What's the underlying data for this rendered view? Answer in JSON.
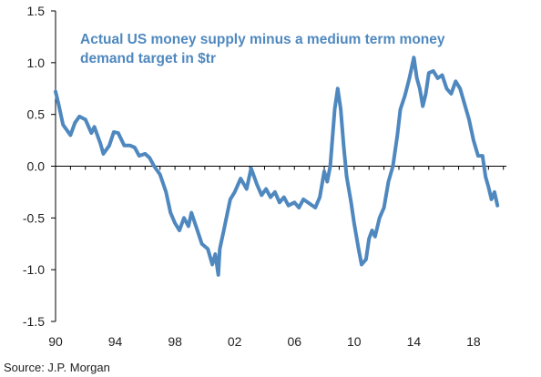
{
  "chart_data": {
    "type": "line",
    "title": "Actual US money supply minus a medium term money demand target in $tr",
    "xlabel": "",
    "ylabel": "",
    "source": "Source: J.P. Morgan",
    "xlim": [
      1990,
      2020.2
    ],
    "ylim": [
      -1.5,
      1.5
    ],
    "x_ticks": [
      {
        "value": 1990,
        "label": "90"
      },
      {
        "value": 1994,
        "label": "94"
      },
      {
        "value": 1998,
        "label": "98"
      },
      {
        "value": 2002,
        "label": "02"
      },
      {
        "value": 2006,
        "label": "06"
      },
      {
        "value": 2010,
        "label": "10"
      },
      {
        "value": 2014,
        "label": "14"
      },
      {
        "value": 2018,
        "label": "18"
      }
    ],
    "y_ticks": [
      {
        "value": 1.5,
        "label": "1.5"
      },
      {
        "value": 1.0,
        "label": "1.0"
      },
      {
        "value": 0.5,
        "label": "0.5"
      },
      {
        "value": 0.0,
        "label": "0.0"
      },
      {
        "value": -0.5,
        "label": "-0.5"
      },
      {
        "value": -1.0,
        "label": "-1.0"
      },
      {
        "value": -1.5,
        "label": "-1.5"
      }
    ],
    "grid": false,
    "legend": "none",
    "colors": {
      "line": "#4f88bf",
      "title": "#4f88bf",
      "axis": "#000000"
    },
    "series": [
      {
        "x": [
          1990.0,
          1990.2,
          1990.5,
          1991.0,
          1991.3,
          1991.6,
          1992.0,
          1992.4,
          1992.6,
          1993.0,
          1993.2,
          1993.6,
          1993.9,
          1994.2,
          1994.6,
          1995.0,
          1995.3,
          1995.6,
          1996.0,
          1996.3,
          1996.6,
          1997.0,
          1997.4,
          1997.7,
          1998.0,
          1998.3,
          1998.6,
          1998.9,
          1999.1,
          1999.5,
          1999.8,
          2000.2,
          2000.5,
          2000.7,
          2000.9,
          2001.0,
          2001.3,
          2001.7,
          2002.0,
          2002.4,
          2002.8,
          2003.1,
          2003.5,
          2003.8,
          2004.1,
          2004.4,
          2004.7,
          2005.0,
          2005.3,
          2005.6,
          2006.0,
          2006.3,
          2006.6,
          2007.0,
          2007.4,
          2007.7,
          2008.0,
          2008.2,
          2008.4,
          2008.7,
          2008.9,
          2009.1,
          2009.3,
          2009.5,
          2009.8,
          2010.0,
          2010.3,
          2010.5,
          2010.8,
          2011.0,
          2011.2,
          2011.4,
          2011.7,
          2012.0,
          2012.3,
          2012.6,
          2012.9,
          2013.1,
          2013.4,
          2013.7,
          2014.0,
          2014.2,
          2014.4,
          2014.6,
          2014.8,
          2015.0,
          2015.3,
          2015.6,
          2015.9,
          2016.2,
          2016.5,
          2016.8,
          2017.1,
          2017.4,
          2017.7,
          2018.0,
          2018.3,
          2018.6,
          2018.8,
          2019.0,
          2019.2,
          2019.4,
          2019.6
        ],
        "values": [
          0.72,
          0.6,
          0.4,
          0.3,
          0.42,
          0.48,
          0.45,
          0.32,
          0.38,
          0.22,
          0.12,
          0.2,
          0.33,
          0.32,
          0.2,
          0.2,
          0.18,
          0.1,
          0.12,
          0.08,
          0.0,
          -0.08,
          -0.25,
          -0.45,
          -0.55,
          -0.62,
          -0.5,
          -0.58,
          -0.45,
          -0.62,
          -0.75,
          -0.8,
          -0.95,
          -0.85,
          -1.05,
          -0.8,
          -0.6,
          -0.32,
          -0.25,
          -0.12,
          -0.22,
          -0.02,
          -0.18,
          -0.28,
          -0.22,
          -0.3,
          -0.25,
          -0.35,
          -0.3,
          -0.38,
          -0.35,
          -0.4,
          -0.32,
          -0.36,
          -0.4,
          -0.3,
          -0.05,
          -0.15,
          0.0,
          0.55,
          0.75,
          0.55,
          0.2,
          -0.1,
          -0.35,
          -0.55,
          -0.8,
          -0.95,
          -0.9,
          -0.7,
          -0.62,
          -0.68,
          -0.5,
          -0.4,
          -0.15,
          0.0,
          0.3,
          0.55,
          0.68,
          0.85,
          1.05,
          0.85,
          0.75,
          0.58,
          0.7,
          0.9,
          0.92,
          0.85,
          0.88,
          0.75,
          0.7,
          0.82,
          0.75,
          0.6,
          0.45,
          0.25,
          0.1,
          0.1,
          -0.1,
          -0.2,
          -0.32,
          -0.25,
          -0.38
        ]
      }
    ]
  }
}
